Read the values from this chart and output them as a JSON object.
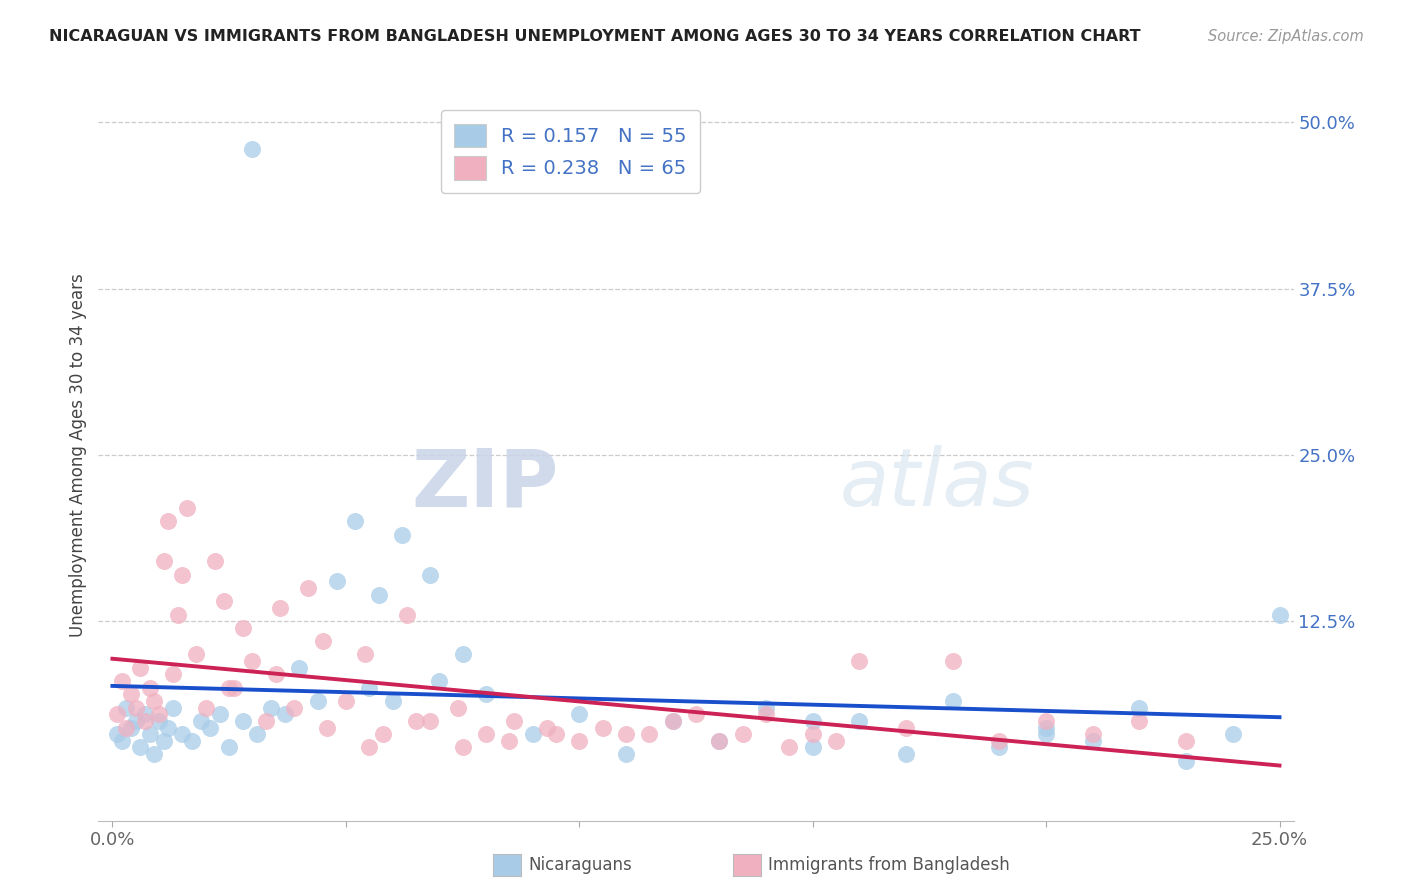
{
  "title": "NICARAGUAN VS IMMIGRANTS FROM BANGLADESH UNEMPLOYMENT AMONG AGES 30 TO 34 YEARS CORRELATION CHART",
  "source": "Source: ZipAtlas.com",
  "ylabel": "Unemployment Among Ages 30 to 34 years",
  "xlim": [
    -0.003,
    0.253
  ],
  "ylim": [
    -0.025,
    0.525
  ],
  "xtick_positions": [
    0.0,
    0.05,
    0.1,
    0.15,
    0.2,
    0.25
  ],
  "xticklabels": [
    "0.0%",
    "",
    "",
    "",
    "",
    "25.0%"
  ],
  "ytick_positions": [
    0.0,
    0.125,
    0.25,
    0.375,
    0.5
  ],
  "ytick_labels": [
    "",
    "12.5%",
    "25.0%",
    "37.5%",
    "50.0%"
  ],
  "blue_scatter_color": "#a8cce8",
  "pink_scatter_color": "#f0b0c0",
  "blue_line_color": "#1a4fcc",
  "pink_line_color": "#cc2255",
  "R_blue": 0.157,
  "N_blue": 55,
  "R_pink": 0.238,
  "N_pink": 65,
  "legend_label_blue": "Nicaraguans",
  "legend_label_pink": "Immigrants from Bangladesh",
  "watermark_zip": "ZIP",
  "watermark_atlas": "atlas",
  "background_color": "#ffffff",
  "title_color": "#222222",
  "source_color": "#999999",
  "axis_label_color": "#444444",
  "ytick_color": "#4472c4",
  "xtick_color": "#666666",
  "legend_text_color": "#4472c4",
  "grid_color": "#cccccc",
  "bottom_label_dark": "#555555"
}
